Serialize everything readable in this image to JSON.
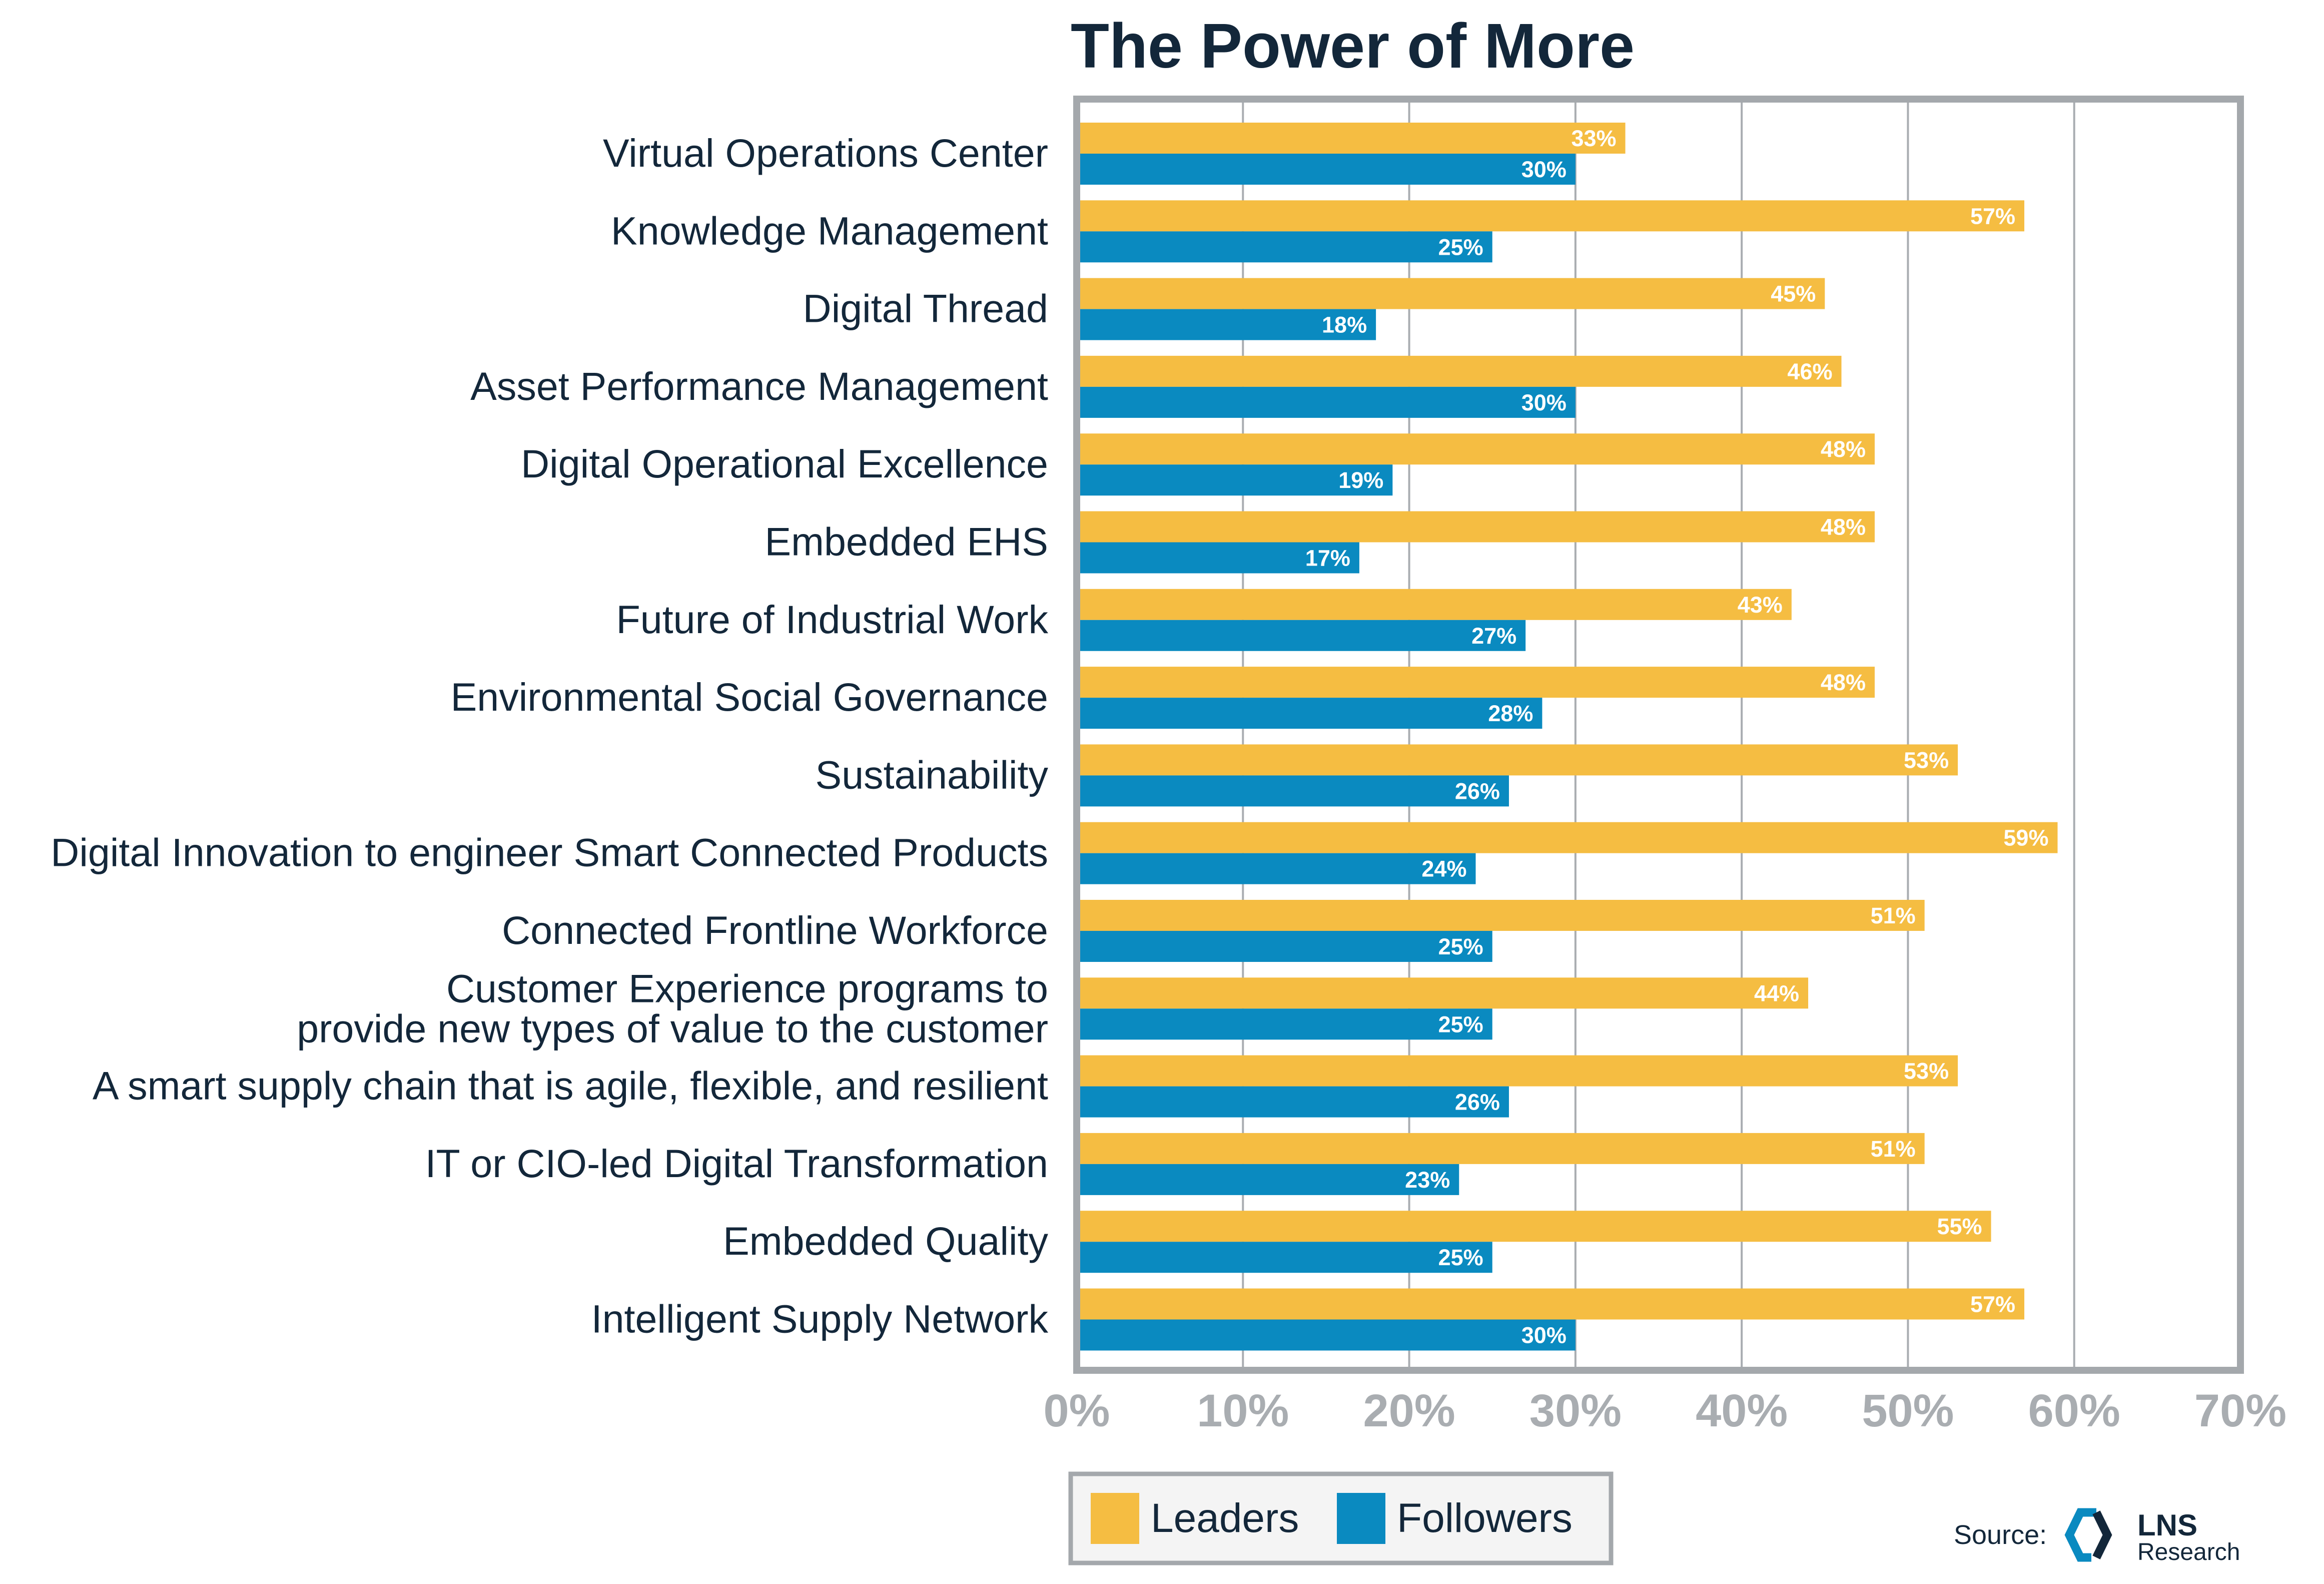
{
  "chart_data": {
    "type": "bar",
    "orientation": "horizontal",
    "title": "The Power of More",
    "xlabel": "",
    "ylabel": "",
    "xlim": [
      0,
      70
    ],
    "grid": true,
    "legend_position": "bottom",
    "categories": [
      "Virtual Operations Center",
      "Knowledge Management",
      "Digital Thread",
      "Asset Performance Management",
      "Digital Operational Excellence",
      "Embedded EHS",
      "Future of Industrial Work",
      "Environmental Social Governance",
      "Sustainability",
      "Digital Innovation to engineer Smart Connected Products",
      "Connected Frontline Workforce",
      "Customer Experience programs to provide new types of value to the customer",
      "A smart supply chain that is agile, flexible, and resilient",
      "IT or CIO-led Digital Transformation",
      "Embedded Quality",
      "Intelligent Supply Network"
    ],
    "category_lines": [
      [
        "Virtual Operations Center"
      ],
      [
        "Knowledge Management"
      ],
      [
        "Digital Thread"
      ],
      [
        "Asset Performance Management"
      ],
      [
        "Digital Operational Excellence"
      ],
      [
        "Embedded EHS"
      ],
      [
        "Future of Industrial Work"
      ],
      [
        "Environmental Social Governance"
      ],
      [
        "Sustainability"
      ],
      [
        "Digital Innovation to engineer Smart Connected Products"
      ],
      [
        "Connected Frontline Workforce"
      ],
      [
        "Customer Experience programs to",
        "provide new types of value to the customer"
      ],
      [
        "A smart supply chain that is agile, flexible, and resilient"
      ],
      [
        "IT or CIO-led Digital Transformation"
      ],
      [
        "Embedded Quality"
      ],
      [
        "Intelligent Supply Network"
      ]
    ],
    "series": [
      {
        "name": "Leaders",
        "color": "#f5bd42",
        "values": [
          33,
          57,
          45,
          46,
          48,
          48,
          43,
          48,
          53,
          59,
          51,
          44,
          53,
          51,
          55,
          57
        ],
        "labels": [
          "33%",
          "57%",
          "45%",
          "46%",
          "48%",
          "48%",
          "43%",
          "48%",
          "53%",
          "59%",
          "51%",
          "44%",
          "53%",
          "51%",
          "55%",
          "57%"
        ]
      },
      {
        "name": "Followers",
        "color": "#0a8ac0",
        "values": [
          30,
          25,
          18,
          30,
          19,
          17,
          27,
          28,
          26,
          24,
          25,
          25,
          26,
          23,
          25,
          30
        ],
        "labels": [
          "30%",
          "25%",
          "18%",
          "30%",
          "19%",
          "17%",
          "27%",
          "28%",
          "26%",
          "24%",
          "25%",
          "25%",
          "26%",
          "23%",
          "25%",
          "30%"
        ]
      }
    ],
    "x_ticks": [
      "0%",
      "10%",
      "20%",
      "30%",
      "40%",
      "50%",
      "60%",
      "70%"
    ]
  },
  "source": {
    "label": "Source:",
    "logo_main": "LNS",
    "logo_sub": "Research"
  }
}
